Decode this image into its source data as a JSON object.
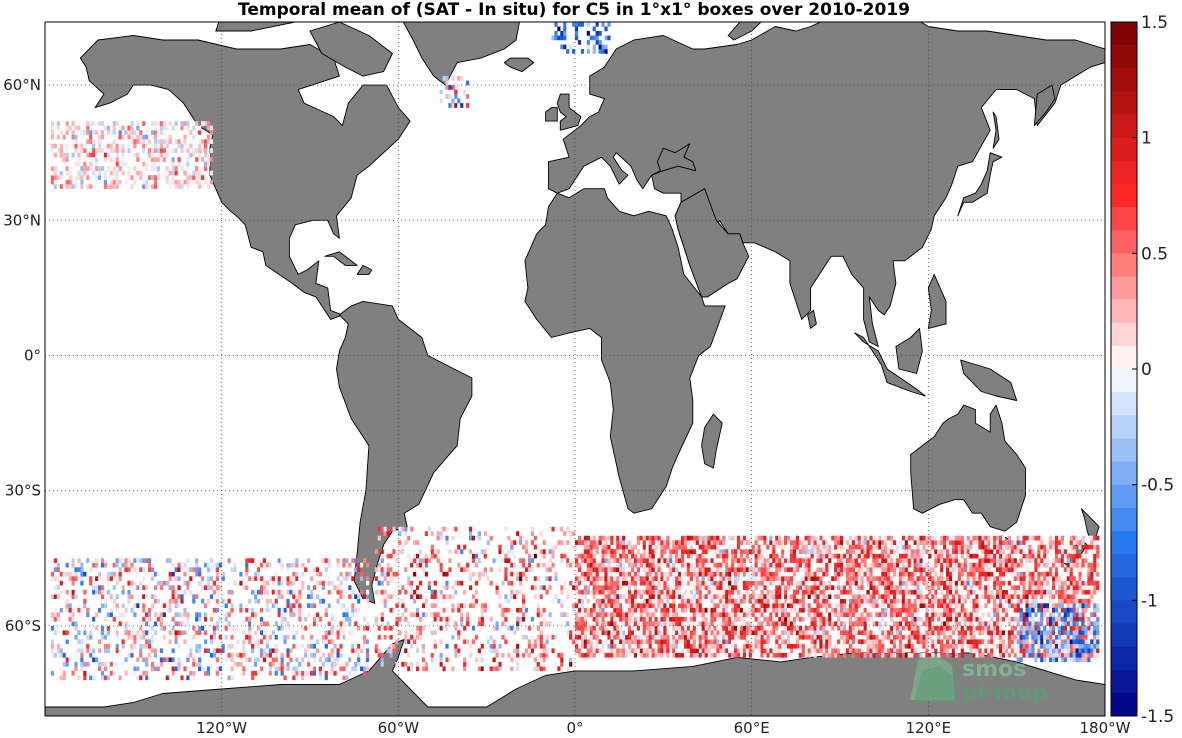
{
  "title": "Temporal mean of (SAT - In situ) for C5 in 1°x1° boxes over 2010-2019",
  "map": {
    "projection": "equirectangular",
    "lon_range": [
      -180,
      180
    ],
    "lat_range": [
      -80,
      74
    ],
    "land_color": "#808080",
    "ocean_color": "#ffffff",
    "grid": "dotted",
    "lat_ticks": [
      {
        "value": 60,
        "label": "60°N"
      },
      {
        "value": 30,
        "label": "30°N"
      },
      {
        "value": 0,
        "label": "0°"
      },
      {
        "value": -30,
        "label": "30°S"
      },
      {
        "value": -60,
        "label": "60°S"
      }
    ],
    "lon_ticks": [
      {
        "value": -120,
        "label": "120°W"
      },
      {
        "value": -60,
        "label": "60°W"
      },
      {
        "value": 0,
        "label": "0°"
      },
      {
        "value": 60,
        "label": "60°E"
      },
      {
        "value": 120,
        "label": "120°E"
      },
      {
        "value": 180,
        "label": "180°W"
      }
    ]
  },
  "colorbar": {
    "vmin": -1.5,
    "vmax": 1.5,
    "ticks": [
      {
        "value": 1.5,
        "label": "1.5"
      },
      {
        "value": 1,
        "label": "1"
      },
      {
        "value": 0.5,
        "label": "0.5"
      },
      {
        "value": 0,
        "label": "0"
      },
      {
        "value": -0.5,
        "label": "-0.5"
      },
      {
        "value": -1,
        "label": "-1"
      },
      {
        "value": -1.5,
        "label": "-1.5"
      }
    ],
    "colormap": "blue-white-red"
  },
  "data_regions": [
    {
      "name": "north-pacific",
      "lon": [
        -178,
        -123
      ],
      "lat": [
        37,
        52
      ],
      "bias": 0.1,
      "spread": 0.5,
      "density": 0.55
    },
    {
      "name": "labrador-sea",
      "lon": [
        -46,
        -36
      ],
      "lat": [
        55,
        62
      ],
      "bias": -0.2,
      "spread": 1.2,
      "density": 0.4
    },
    {
      "name": "norwegian-sea",
      "lon": [
        -8,
        12
      ],
      "lat": [
        67,
        74
      ],
      "bias": -0.8,
      "spread": 0.8,
      "density": 0.35
    },
    {
      "name": "southern-pacific",
      "lon": [
        -178,
        -70
      ],
      "lat": [
        -72,
        -45
      ],
      "bias": 0.05,
      "spread": 0.9,
      "density": 0.35
    },
    {
      "name": "south-atlantic",
      "lon": [
        -68,
        0
      ],
      "lat": [
        -70,
        -38
      ],
      "bias": 0.3,
      "spread": 0.9,
      "density": 0.3
    },
    {
      "name": "southern-indian",
      "lon": [
        0,
        178
      ],
      "lat": [
        -67,
        -40
      ],
      "bias": 0.45,
      "spread": 0.7,
      "density": 0.7
    },
    {
      "name": "tasman",
      "lon": [
        150,
        178
      ],
      "lat": [
        -68,
        -55
      ],
      "bias": -0.5,
      "spread": 0.8,
      "density": 0.6
    }
  ],
  "logo": {
    "line1": "smos",
    "line2": "pi-mep",
    "color": "#5a9e73"
  }
}
